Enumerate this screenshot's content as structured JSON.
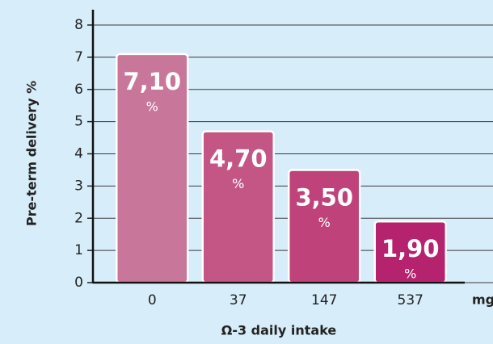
{
  "chart_data": {
    "type": "bar",
    "x_label": "Ω-3 daily intake",
    "x_unit": "mg",
    "y_label": "Pre-term delivery %",
    "categories": [
      "0",
      "37",
      "147",
      "537"
    ],
    "values": [
      7.1,
      4.7,
      3.5,
      1.9
    ],
    "value_labels": [
      "7,10",
      "4,70",
      "3,50",
      "1,90"
    ],
    "value_unit": "%",
    "colors": [
      "#c8779b",
      "#c45686",
      "#bf437a",
      "#b5226d"
    ],
    "ylim": [
      0,
      8
    ],
    "yticks": [
      0,
      1,
      2,
      3,
      4,
      5,
      6,
      7,
      8
    ],
    "grid": true
  }
}
